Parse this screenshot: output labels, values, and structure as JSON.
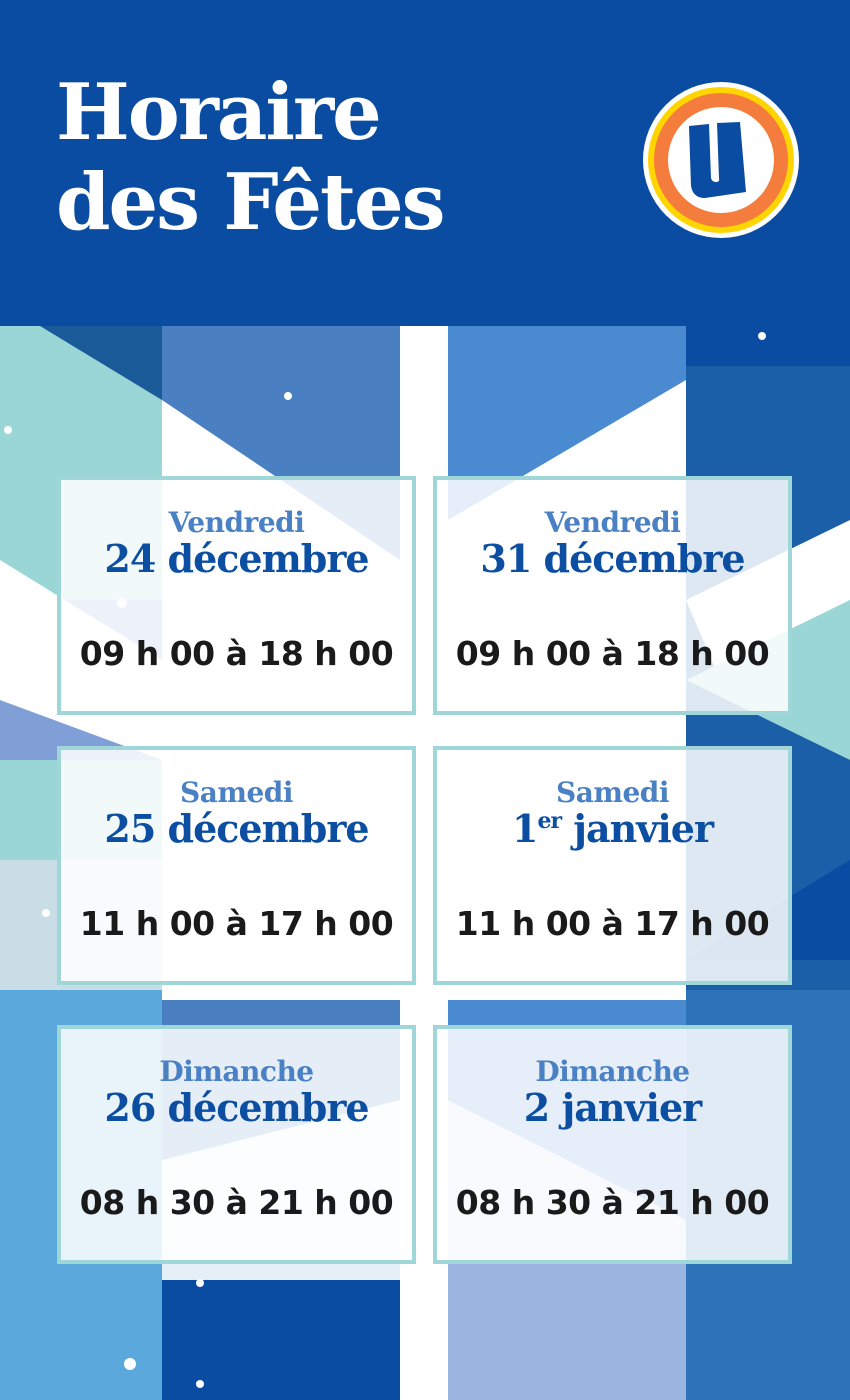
{
  "header": {
    "title_line1": "Horaire",
    "title_line2": "des Fêtes"
  },
  "logo": {
    "letter": "U",
    "icon": "u-logo-icon"
  },
  "colors": {
    "header_blue": "#0a4ca1",
    "date_blue": "#0b4ea2",
    "day_blue": "#4a80c4",
    "card_border": "#9fd7d9",
    "logo_orange": "#f47c3c",
    "logo_yellow": "#ffd500"
  },
  "schedule": [
    {
      "day": "Vendredi",
      "date": "24 décembre",
      "hours": "09 h 00 à 18 h 00"
    },
    {
      "day": "Vendredi",
      "date": "31 décembre",
      "hours": "09 h 00 à 18 h 00"
    },
    {
      "day": "Samedi",
      "date": "25 décembre",
      "hours": "11 h 00 à 17 h 00"
    },
    {
      "day": "Samedi",
      "date_num": "1",
      "date_sup": "er",
      "date_rest": " janvier",
      "hours": "11 h 00 à 17 h 00"
    },
    {
      "day": "Dimanche",
      "date": "26 décembre",
      "hours": "08 h 30 à 21 h 00"
    },
    {
      "day": "Dimanche",
      "date": "2 janvier",
      "hours": "08 h 30 à 21 h 00"
    }
  ]
}
